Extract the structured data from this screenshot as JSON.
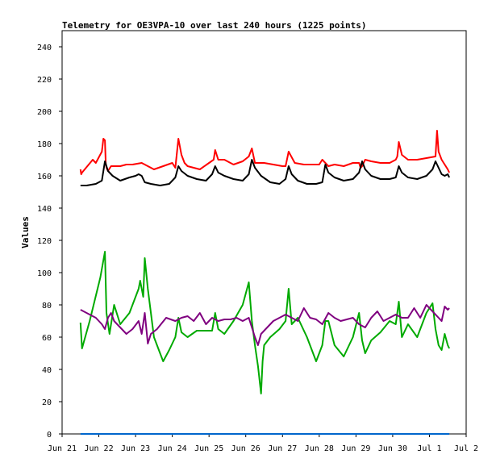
{
  "chart_data": {
    "type": "line",
    "title": "Telemetry for OE3VPA-10 over last 240 hours (1225 points)",
    "xlabel": "",
    "ylabel": "Values",
    "ylim": [
      0,
      250
    ],
    "yticks": [
      0,
      20,
      40,
      60,
      80,
      100,
      120,
      140,
      160,
      180,
      200,
      220,
      240
    ],
    "xlim": [
      "2024-06-21 00:00",
      "2024-07-02 00:00"
    ],
    "xticks": [
      {
        "at": "2024-06-21 00:00",
        "label": "Jun 21"
      },
      {
        "at": "2024-06-22 00:00",
        "label": "Jun 22"
      },
      {
        "at": "2024-06-23 00:00",
        "label": "Jun 23"
      },
      {
        "at": "2024-06-24 00:00",
        "label": "Jun 24"
      },
      {
        "at": "2024-06-25 00:00",
        "label": "Jun 25"
      },
      {
        "at": "2024-06-26 00:00",
        "label": "Jun 26"
      },
      {
        "at": "2024-06-27 00:00",
        "label": "Jun 27"
      },
      {
        "at": "2024-06-28 00:00",
        "label": "Jun 28"
      },
      {
        "at": "2024-06-29 00:00",
        "label": "Jun 29"
      },
      {
        "at": "2024-06-30 00:00",
        "label": "Jun 30"
      },
      {
        "at": "2024-07-01 00:00",
        "label": "Jul 1"
      },
      {
        "at": "2024-07-02 00:00",
        "label": "Jul 2"
      }
    ],
    "grid": false,
    "legend": "none",
    "series": [
      {
        "color": "#ff0000",
        "x": [
          "2024-06-21 12:00",
          "2024-06-21 12:30",
          "2024-06-21 13:00",
          "2024-06-21 20:00",
          "2024-06-21 22:00",
          "2024-06-22 02:00",
          "2024-06-22 03:00",
          "2024-06-22 04:00",
          "2024-06-22 04:30",
          "2024-06-22 05:00",
          "2024-06-22 06:00",
          "2024-06-22 08:00",
          "2024-06-22 14:00",
          "2024-06-22 18:00",
          "2024-06-22 22:00",
          "2024-06-23 04:00",
          "2024-06-23 08:00",
          "2024-06-23 12:00",
          "2024-06-23 18:00",
          "2024-06-24 00:00",
          "2024-06-24 02:00",
          "2024-06-24 04:00",
          "2024-06-24 06:00",
          "2024-06-24 08:00",
          "2024-06-24 10:00",
          "2024-06-24 14:00",
          "2024-06-24 18:00",
          "2024-06-25 00:00",
          "2024-06-25 03:00",
          "2024-06-25 04:00",
          "2024-06-25 06:00",
          "2024-06-25 10:00",
          "2024-06-25 16:00",
          "2024-06-25 22:00",
          "2024-06-26 02:00",
          "2024-06-26 04:00",
          "2024-06-26 06:00",
          "2024-06-26 12:00",
          "2024-06-26 18:00",
          "2024-06-27 00:00",
          "2024-06-27 02:00",
          "2024-06-27 04:00",
          "2024-06-27 08:00",
          "2024-06-27 14:00",
          "2024-06-27 20:00",
          "2024-06-28 00:00",
          "2024-06-28 02:00",
          "2024-06-28 04:00",
          "2024-06-28 06:00",
          "2024-06-28 10:00",
          "2024-06-28 16:00",
          "2024-06-28 22:00",
          "2024-06-29 02:00",
          "2024-06-29 03:00",
          "2024-06-29 04:00",
          "2024-06-29 06:00",
          "2024-06-29 10:00",
          "2024-06-29 16:00",
          "2024-06-29 22:00",
          "2024-06-30 02:00",
          "2024-06-30 03:00",
          "2024-06-30 04:00",
          "2024-06-30 06:00",
          "2024-06-30 10:00",
          "2024-06-30 16:00",
          "2024-06-30 22:00",
          "2024-07-01 04:00",
          "2024-07-01 05:00",
          "2024-07-01 06:00",
          "2024-07-01 08:00",
          "2024-07-01 10:00",
          "2024-07-01 12:00",
          "2024-07-01 13:00"
        ],
        "values": [
          164,
          161,
          162,
          170,
          168,
          175,
          183,
          182,
          168,
          165,
          163,
          166,
          166,
          167,
          167,
          168,
          166,
          164,
          166,
          168,
          165,
          183,
          173,
          168,
          166,
          165,
          164,
          168,
          170,
          176,
          170,
          170,
          167,
          169,
          172,
          177,
          168,
          168,
          167,
          166,
          166,
          175,
          168,
          167,
          167,
          167,
          170,
          168,
          166,
          167,
          166,
          168,
          168,
          165,
          166,
          170,
          169,
          168,
          168,
          170,
          172,
          181,
          173,
          170,
          170,
          171,
          172,
          188,
          175,
          170,
          167,
          164,
          162
        ]
      },
      {
        "color": "#000000",
        "x": [
          "2024-06-21 12:00",
          "2024-06-21 16:00",
          "2024-06-21 22:00",
          "2024-06-22 02:00",
          "2024-06-22 04:00",
          "2024-06-22 06:00",
          "2024-06-22 09:00",
          "2024-06-22 14:00",
          "2024-06-22 20:00",
          "2024-06-23 00:00",
          "2024-06-23 02:00",
          "2024-06-23 04:00",
          "2024-06-23 06:00",
          "2024-06-23 10:00",
          "2024-06-23 16:00",
          "2024-06-23 22:00",
          "2024-06-24 02:00",
          "2024-06-24 04:00",
          "2024-06-24 06:00",
          "2024-06-24 10:00",
          "2024-06-24 16:00",
          "2024-06-24 22:00",
          "2024-06-25 02:00",
          "2024-06-25 04:00",
          "2024-06-25 06:00",
          "2024-06-25 10:00",
          "2024-06-25 16:00",
          "2024-06-25 22:00",
          "2024-06-26 02:00",
          "2024-06-26 04:00",
          "2024-06-26 06:00",
          "2024-06-26 10:00",
          "2024-06-26 16:00",
          "2024-06-26 22:00",
          "2024-06-27 02:00",
          "2024-06-27 04:00",
          "2024-06-27 06:00",
          "2024-06-27 10:00",
          "2024-06-27 16:00",
          "2024-06-27 22:00",
          "2024-06-28 02:00",
          "2024-06-28 04:00",
          "2024-06-28 06:00",
          "2024-06-28 10:00",
          "2024-06-28 16:00",
          "2024-06-28 22:00",
          "2024-06-29 02:00",
          "2024-06-29 04:00",
          "2024-06-29 06:00",
          "2024-06-29 10:00",
          "2024-06-29 16:00",
          "2024-06-29 22:00",
          "2024-06-30 02:00",
          "2024-06-30 04:00",
          "2024-06-30 06:00",
          "2024-06-30 10:00",
          "2024-06-30 16:00",
          "2024-06-30 22:00",
          "2024-07-01 02:00",
          "2024-07-01 04:00",
          "2024-07-01 06:00",
          "2024-07-01 08:00",
          "2024-07-01 10:00",
          "2024-07-01 12:00",
          "2024-07-01 13:00"
        ],
        "values": [
          154,
          154,
          155,
          157,
          169,
          163,
          160,
          157,
          159,
          160,
          161,
          160,
          156,
          155,
          154,
          155,
          159,
          166,
          163,
          160,
          158,
          157,
          161,
          166,
          162,
          160,
          158,
          157,
          161,
          170,
          165,
          160,
          156,
          155,
          158,
          166,
          161,
          157,
          155,
          155,
          156,
          167,
          162,
          159,
          157,
          158,
          162,
          169,
          164,
          160,
          158,
          158,
          159,
          166,
          162,
          159,
          158,
          160,
          164,
          169,
          165,
          161,
          160,
          161,
          159
        ]
      },
      {
        "color": "#00aa00",
        "x": [
          "2024-06-21 12:00",
          "2024-06-21 13:00",
          "2024-06-21 18:00",
          "2024-06-22 01:00",
          "2024-06-22 04:00",
          "2024-06-22 05:00",
          "2024-06-22 07:00",
          "2024-06-22 10:00",
          "2024-06-22 14:00",
          "2024-06-22 20:00",
          "2024-06-23 02:00",
          "2024-06-23 03:00",
          "2024-06-23 05:00",
          "2024-06-23 06:00",
          "2024-06-23 08:00",
          "2024-06-23 12:00",
          "2024-06-23 18:00",
          "2024-06-23 22:00",
          "2024-06-24 02:00",
          "2024-06-24 04:00",
          "2024-06-24 06:00",
          "2024-06-24 10:00",
          "2024-06-24 16:00",
          "2024-06-24 22:00",
          "2024-06-25 02:00",
          "2024-06-25 04:00",
          "2024-06-25 06:00",
          "2024-06-25 10:00",
          "2024-06-25 16:00",
          "2024-06-25 22:00",
          "2024-06-26 02:00",
          "2024-06-26 04:00",
          "2024-06-26 06:00",
          "2024-06-26 08:00",
          "2024-06-26 10:00",
          "2024-06-26 11:00",
          "2024-06-26 12:00",
          "2024-06-26 16:00",
          "2024-06-26 22:00",
          "2024-06-27 02:00",
          "2024-06-27 04:00",
          "2024-06-27 06:00",
          "2024-06-27 10:00",
          "2024-06-27 16:00",
          "2024-06-27 22:00",
          "2024-06-28 02:00",
          "2024-06-28 04:00",
          "2024-06-28 06:00",
          "2024-06-28 10:00",
          "2024-06-28 16:00",
          "2024-06-28 22:00",
          "2024-06-29 02:00",
          "2024-06-29 04:00",
          "2024-06-29 06:00",
          "2024-06-29 10:00",
          "2024-06-29 16:00",
          "2024-06-29 22:00",
          "2024-06-30 02:00",
          "2024-06-30 04:00",
          "2024-06-30 06:00",
          "2024-06-30 10:00",
          "2024-06-30 16:00",
          "2024-06-30 22:00",
          "2024-07-01 02:00",
          "2024-07-01 04:00",
          "2024-07-01 06:00",
          "2024-07-01 08:00",
          "2024-07-01 10:00",
          "2024-07-01 12:00",
          "2024-07-01 13:00"
        ],
        "values": [
          69,
          53,
          70,
          97,
          113,
          75,
          62,
          80,
          68,
          75,
          90,
          95,
          85,
          109,
          90,
          60,
          45,
          52,
          60,
          72,
          63,
          60,
          64,
          64,
          64,
          75,
          65,
          62,
          70,
          80,
          94,
          70,
          55,
          42,
          25,
          45,
          55,
          60,
          65,
          70,
          90,
          68,
          72,
          60,
          45,
          55,
          70,
          70,
          55,
          48,
          60,
          75,
          58,
          50,
          58,
          63,
          70,
          68,
          82,
          60,
          68,
          60,
          75,
          81,
          65,
          55,
          52,
          62,
          55,
          53
        ]
      },
      {
        "color": "#800080",
        "x": [
          "2024-06-21 12:00",
          "2024-06-21 18:00",
          "2024-06-21 22:00",
          "2024-06-22 02:00",
          "2024-06-22 04:00",
          "2024-06-22 06:00",
          "2024-06-22 08:00",
          "2024-06-22 10:00",
          "2024-06-22 14:00",
          "2024-06-22 18:00",
          "2024-06-22 22:00",
          "2024-06-23 02:00",
          "2024-06-23 04:00",
          "2024-06-23 06:00",
          "2024-06-23 08:00",
          "2024-06-23 10:00",
          "2024-06-23 14:00",
          "2024-06-23 20:00",
          "2024-06-24 02:00",
          "2024-06-24 06:00",
          "2024-06-24 10:00",
          "2024-06-24 14:00",
          "2024-06-24 18:00",
          "2024-06-24 22:00",
          "2024-06-25 02:00",
          "2024-06-25 06:00",
          "2024-06-25 10:00",
          "2024-06-25 14:00",
          "2024-06-25 18:00",
          "2024-06-25 22:00",
          "2024-06-26 02:00",
          "2024-06-26 06:00",
          "2024-06-26 08:00",
          "2024-06-26 10:00",
          "2024-06-26 14:00",
          "2024-06-26 18:00",
          "2024-06-26 22:00",
          "2024-06-27 02:00",
          "2024-06-27 06:00",
          "2024-06-27 10:00",
          "2024-06-27 14:00",
          "2024-06-27 18:00",
          "2024-06-27 22:00",
          "2024-06-28 02:00",
          "2024-06-28 06:00",
          "2024-06-28 10:00",
          "2024-06-28 14:00",
          "2024-06-28 18:00",
          "2024-06-28 22:00",
          "2024-06-29 02:00",
          "2024-06-29 06:00",
          "2024-06-29 10:00",
          "2024-06-29 14:00",
          "2024-06-29 18:00",
          "2024-06-29 22:00",
          "2024-06-30 02:00",
          "2024-06-30 06:00",
          "2024-06-30 10:00",
          "2024-06-30 14:00",
          "2024-06-30 18:00",
          "2024-06-30 22:00",
          "2024-07-01 02:00",
          "2024-07-01 06:00",
          "2024-07-01 08:00",
          "2024-07-01 10:00",
          "2024-07-01 12:00",
          "2024-07-01 13:00"
        ],
        "values": [
          77,
          74,
          72,
          68,
          65,
          72,
          75,
          70,
          66,
          62,
          65,
          70,
          62,
          75,
          56,
          62,
          65,
          72,
          70,
          72,
          73,
          70,
          75,
          68,
          72,
          70,
          71,
          71,
          72,
          70,
          72,
          60,
          55,
          62,
          66,
          70,
          72,
          74,
          72,
          70,
          78,
          72,
          71,
          68,
          75,
          72,
          70,
          71,
          72,
          68,
          66,
          72,
          76,
          70,
          72,
          74,
          72,
          72,
          78,
          72,
          80,
          76,
          72,
          70,
          79,
          77,
          78
        ]
      },
      {
        "color": "#0066cc",
        "x": [
          "2024-06-21 12:00",
          "2024-07-01 13:00"
        ],
        "values": [
          0,
          0
        ]
      }
    ]
  }
}
